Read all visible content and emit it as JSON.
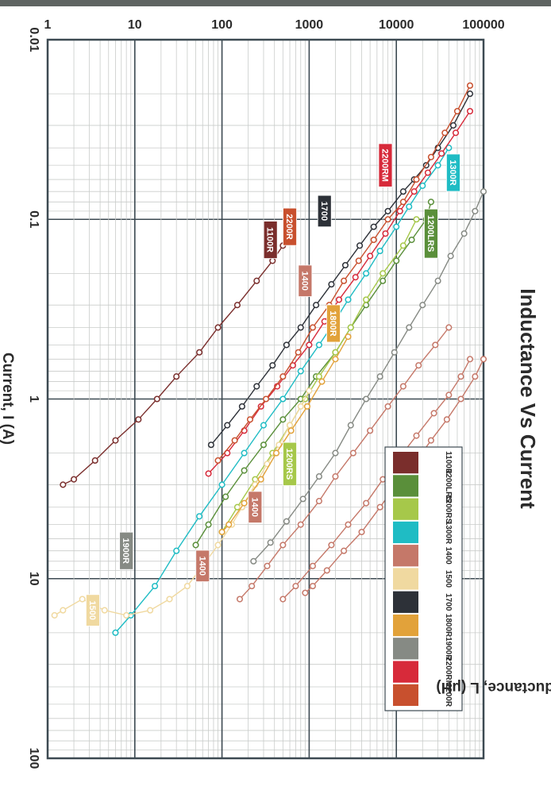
{
  "chart_data": {
    "type": "line",
    "title": "Inductance Vs Current",
    "xlabel": "Current, I (A)",
    "ylabel": "Inductance, L (μH)",
    "x_scale": "log",
    "y_scale": "log",
    "xlim": [
      0.01,
      100
    ],
    "ylim": [
      1,
      100000
    ],
    "x_ticks": [
      "0.01",
      "0.1",
      "1",
      "10",
      "100"
    ],
    "y_ticks": [
      "1",
      "10",
      "100",
      "1000",
      "10000",
      "100000"
    ],
    "grid": true,
    "legend_position": "top-right",
    "legend": [
      {
        "name": "1100R",
        "color": "#7a2e2c"
      },
      {
        "name": "1200LRS",
        "color": "#5a8f3a"
      },
      {
        "name": "1200RS",
        "color": "#a6c84a"
      },
      {
        "name": "1300R",
        "color": "#1fbcc4"
      },
      {
        "name": "1400",
        "color": "#c57869"
      },
      {
        "name": "1500",
        "color": "#f0d9a0"
      },
      {
        "name": "1700",
        "color": "#2d3138"
      },
      {
        "name": "1800R",
        "color": "#e2a23a"
      },
      {
        "name": "1900R",
        "color": "#868a84"
      },
      {
        "name": "2200RM",
        "color": "#d72a3a"
      },
      {
        "name": "2200R",
        "color": "#c8502e"
      }
    ],
    "series": [
      {
        "name": "1100R",
        "color": "#7a2e2c",
        "label_at": [
          0.13,
          360
        ],
        "points": [
          [
            0.14,
            500
          ],
          [
            0.17,
            380
          ],
          [
            0.22,
            250
          ],
          [
            0.3,
            150
          ],
          [
            0.4,
            90
          ],
          [
            0.55,
            55
          ],
          [
            0.75,
            30
          ],
          [
            1.0,
            18
          ],
          [
            1.3,
            11
          ],
          [
            1.7,
            6
          ],
          [
            2.2,
            3.5
          ],
          [
            2.8,
            2.0
          ],
          [
            3.0,
            1.5
          ]
        ]
      },
      {
        "name": "1200LRS",
        "color": "#5a8f3a",
        "label_at": [
          0.12,
          25000
        ],
        "points": [
          [
            0.08,
            25000
          ],
          [
            0.1,
            22000
          ],
          [
            0.13,
            15000
          ],
          [
            0.17,
            10000
          ],
          [
            0.22,
            7000
          ],
          [
            0.3,
            4500
          ],
          [
            0.4,
            3000
          ],
          [
            0.55,
            2000
          ],
          [
            0.75,
            1200
          ],
          [
            1.0,
            800
          ],
          [
            1.3,
            500
          ],
          [
            1.8,
            300
          ],
          [
            2.5,
            180
          ],
          [
            3.5,
            110
          ],
          [
            5.0,
            70
          ],
          [
            6.5,
            50
          ]
        ]
      },
      {
        "name": "1200RS",
        "color": "#a6c84a",
        "label_at": [
          2.3,
          600
        ],
        "points": [
          [
            0.1,
            17000
          ],
          [
            0.14,
            12000
          ],
          [
            0.2,
            7000
          ],
          [
            0.28,
            4500
          ],
          [
            0.4,
            3000
          ],
          [
            0.55,
            2000
          ],
          [
            0.75,
            1300
          ],
          [
            1.0,
            900
          ],
          [
            1.4,
            600
          ],
          [
            2.0,
            380
          ],
          [
            2.8,
            240
          ],
          [
            4.0,
            150
          ],
          [
            5.5,
            100
          ]
        ]
      },
      {
        "name": "1300R",
        "color": "#1fbcc4",
        "label_at": [
          0.055,
          45000
        ],
        "points": [
          [
            0.04,
            40000
          ],
          [
            0.05,
            30000
          ],
          [
            0.065,
            20000
          ],
          [
            0.085,
            14000
          ],
          [
            0.11,
            10000
          ],
          [
            0.15,
            6500
          ],
          [
            0.2,
            4500
          ],
          [
            0.28,
            2800
          ],
          [
            0.38,
            1900
          ],
          [
            0.5,
            1300
          ],
          [
            0.7,
            800
          ],
          [
            1.0,
            500
          ],
          [
            1.4,
            300
          ],
          [
            2.0,
            180
          ],
          [
            3.0,
            100
          ],
          [
            4.5,
            55
          ],
          [
            7.0,
            30
          ],
          [
            11,
            17
          ],
          [
            16,
            9
          ],
          [
            20,
            6
          ]
        ]
      },
      {
        "name": "1400",
        "color": "#c57869",
        "label_at": [
          0.22,
          900
        ],
        "points": [
          [
            0.4,
            40000
          ],
          [
            0.5,
            28000
          ],
          [
            0.65,
            18000
          ],
          [
            0.85,
            12000
          ],
          [
            1.1,
            8000
          ],
          [
            1.5,
            5000
          ],
          [
            2.0,
            3200
          ],
          [
            2.7,
            2000
          ],
          [
            3.7,
            1300
          ],
          [
            5.0,
            800
          ],
          [
            6.5,
            500
          ],
          [
            8.5,
            330
          ],
          [
            11,
            220
          ],
          [
            13,
            160
          ]
        ]
      },
      {
        "name": "1400",
        "color": "#c57869",
        "label_at": [
          4.0,
          240
        ],
        "points": [
          [
            0.6,
            70000
          ],
          [
            0.75,
            55000
          ],
          [
            0.95,
            40000
          ],
          [
            1.2,
            27000
          ],
          [
            1.6,
            17000
          ],
          [
            2.1,
            11000
          ],
          [
            2.8,
            7000
          ],
          [
            3.8,
            4500
          ],
          [
            5.0,
            2800
          ],
          [
            6.5,
            1800
          ],
          [
            8.5,
            1100
          ],
          [
            11,
            700
          ],
          [
            13,
            500
          ]
        ]
      },
      {
        "name": "1400",
        "color": "#c57869",
        "label_at": [
          8.5,
          60
        ],
        "points": [
          [
            0.6,
            100000
          ],
          [
            0.75,
            80000
          ],
          [
            1.0,
            55000
          ],
          [
            1.3,
            38000
          ],
          [
            1.7,
            25000
          ],
          [
            2.3,
            16000
          ],
          [
            3.0,
            10000
          ],
          [
            4.0,
            6500
          ],
          [
            5.5,
            4000
          ],
          [
            7.0,
            2500
          ],
          [
            9.0,
            1600
          ],
          [
            11,
            1100
          ],
          [
            12,
            900
          ]
        ]
      },
      {
        "name": "1500",
        "color": "#f0d9a0",
        "label_at": [
          15,
          3.3
        ],
        "points": [
          [
            0.9,
            1000
          ],
          [
            1.1,
            800
          ],
          [
            1.4,
            600
          ],
          [
            1.8,
            450
          ],
          [
            2.3,
            330
          ],
          [
            3.0,
            240
          ],
          [
            4.0,
            170
          ],
          [
            5.0,
            130
          ],
          [
            6.5,
            90
          ],
          [
            8.5,
            60
          ],
          [
            11,
            40
          ],
          [
            13,
            25
          ],
          [
            15,
            15
          ],
          [
            16,
            8
          ],
          [
            15,
            4.5
          ],
          [
            13,
            2.5
          ],
          [
            15,
            1.5
          ],
          [
            16,
            1.2
          ]
        ]
      },
      {
        "name": "1700",
        "color": "#2d3138",
        "label_at": [
          0.09,
          1500
        ],
        "points": [
          [
            0.02,
            70000
          ],
          [
            0.03,
            45000
          ],
          [
            0.04,
            30000
          ],
          [
            0.05,
            22000
          ],
          [
            0.06,
            16000
          ],
          [
            0.07,
            12000
          ],
          [
            0.09,
            8000
          ],
          [
            0.11,
            5500
          ],
          [
            0.14,
            3800
          ],
          [
            0.18,
            2600
          ],
          [
            0.23,
            1800
          ],
          [
            0.3,
            1200
          ],
          [
            0.4,
            800
          ],
          [
            0.5,
            550
          ],
          [
            0.65,
            380
          ],
          [
            0.85,
            250
          ],
          [
            1.1,
            170
          ],
          [
            1.4,
            115
          ],
          [
            1.8,
            75
          ]
        ]
      },
      {
        "name": "1800R",
        "color": "#e2a23a",
        "label_at": [
          0.38,
          1900
        ],
        "points": [
          [
            0.45,
            2800
          ],
          [
            0.6,
            2000
          ],
          [
            0.8,
            1400
          ],
          [
            1.1,
            950
          ],
          [
            1.5,
            620
          ],
          [
            2.0,
            420
          ],
          [
            2.8,
            280
          ],
          [
            3.8,
            180
          ],
          [
            5.0,
            120
          ],
          [
            5.5,
            100
          ]
        ]
      },
      {
        "name": "1900R",
        "color": "#868a84",
        "label_at": [
          7.0,
          8.0
        ],
        "points": [
          [
            0.07,
            100000
          ],
          [
            0.09,
            80000
          ],
          [
            0.12,
            60000
          ],
          [
            0.16,
            42000
          ],
          [
            0.22,
            30000
          ],
          [
            0.3,
            20000
          ],
          [
            0.4,
            14000
          ],
          [
            0.55,
            9500
          ],
          [
            0.75,
            6500
          ],
          [
            1.0,
            4500
          ],
          [
            1.4,
            3000
          ],
          [
            2.0,
            2000
          ],
          [
            2.7,
            1300
          ],
          [
            3.6,
            850
          ],
          [
            4.8,
            550
          ],
          [
            6.3,
            360
          ],
          [
            8.0,
            230
          ]
        ]
      },
      {
        "name": "2200RM",
        "color": "#d72a3a",
        "label_at": [
          0.05,
          7500
        ],
        "points": [
          [
            0.025,
            70000
          ],
          [
            0.033,
            48000
          ],
          [
            0.043,
            33000
          ],
          [
            0.055,
            23000
          ],
          [
            0.07,
            16000
          ],
          [
            0.09,
            11000
          ],
          [
            0.12,
            7500
          ],
          [
            0.16,
            5000
          ],
          [
            0.21,
            3400
          ],
          [
            0.28,
            2200
          ],
          [
            0.37,
            1500
          ],
          [
            0.5,
            1000
          ],
          [
            0.65,
            650
          ],
          [
            0.85,
            430
          ],
          [
            1.1,
            280
          ],
          [
            1.5,
            180
          ],
          [
            2.0,
            115
          ],
          [
            2.6,
            70
          ]
        ]
      },
      {
        "name": "2200R",
        "color": "#c8502e",
        "label_at": [
          0.11,
          600
        ],
        "points": [
          [
            0.018,
            70000
          ],
          [
            0.025,
            50000
          ],
          [
            0.033,
            36000
          ],
          [
            0.045,
            25000
          ],
          [
            0.06,
            17000
          ],
          [
            0.08,
            12000
          ],
          [
            0.1,
            8000
          ],
          [
            0.13,
            5500
          ],
          [
            0.17,
            3700
          ],
          [
            0.22,
            2500
          ],
          [
            0.3,
            1700
          ],
          [
            0.4,
            1100
          ],
          [
            0.55,
            750
          ],
          [
            0.75,
            500
          ],
          [
            1.0,
            320
          ],
          [
            1.3,
            210
          ],
          [
            1.7,
            140
          ],
          [
            2.2,
            90
          ]
        ]
      }
    ]
  }
}
